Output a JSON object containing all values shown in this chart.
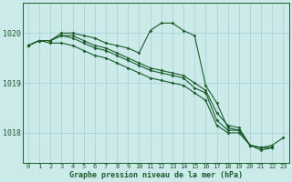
{
  "background_color": "#cceaea",
  "grid_color": "#aad4d4",
  "line_color": "#1a5c2a",
  "xlabel": "Graphe pression niveau de la mer (hPa)",
  "xlim": [
    -0.5,
    23.5
  ],
  "ylim": [
    1017.4,
    1020.6
  ],
  "yticks": [
    1018,
    1019,
    1020
  ],
  "xticks": [
    0,
    1,
    2,
    3,
    4,
    5,
    6,
    7,
    8,
    9,
    10,
    11,
    12,
    13,
    14,
    15,
    16,
    17,
    18,
    19,
    20,
    21,
    22,
    23
  ],
  "series": [
    {
      "x": [
        0,
        1,
        2,
        3,
        4,
        5,
        6,
        7,
        8,
        9,
        10,
        11,
        12,
        13,
        14,
        15,
        16,
        17,
        18,
        19,
        20,
        21,
        22,
        23
      ],
      "y": [
        1019.75,
        1019.85,
        1019.85,
        1020.0,
        1020.0,
        1019.95,
        1019.9,
        1019.8,
        1019.75,
        1019.7,
        1019.6,
        1020.05,
        1020.2,
        1020.2,
        1020.05,
        1019.95,
        1018.95,
        1018.6,
        1018.1,
        1018.05,
        1017.75,
        1017.7,
        1017.75,
        1017.9
      ]
    },
    {
      "x": [
        0,
        1,
        2,
        3,
        4,
        5,
        6,
        7,
        8,
        9,
        10,
        11,
        12,
        13,
        14,
        15,
        16,
        17,
        18,
        19,
        20,
        21,
        22
      ],
      "y": [
        1019.75,
        1019.85,
        1019.85,
        1019.95,
        1019.95,
        1019.85,
        1019.75,
        1019.7,
        1019.6,
        1019.5,
        1019.4,
        1019.3,
        1019.25,
        1019.2,
        1019.15,
        1019.0,
        1018.85,
        1018.4,
        1018.15,
        1018.1,
        1017.75,
        1017.7,
        1017.7
      ]
    },
    {
      "x": [
        0,
        1,
        2,
        3,
        4,
        5,
        6,
        7,
        8,
        9,
        10,
        11,
        12,
        13,
        14,
        15,
        16,
        17,
        18,
        19,
        20,
        21,
        22
      ],
      "y": [
        1019.75,
        1019.85,
        1019.85,
        1019.95,
        1019.9,
        1019.8,
        1019.7,
        1019.65,
        1019.55,
        1019.45,
        1019.35,
        1019.25,
        1019.2,
        1019.15,
        1019.1,
        1018.9,
        1018.8,
        1018.25,
        1018.05,
        1018.05,
        1017.75,
        1017.7,
        1017.7
      ]
    },
    {
      "x": [
        0,
        1,
        2,
        3,
        4,
        5,
        6,
        7,
        8,
        9,
        10,
        11,
        12,
        13,
        14,
        15,
        16,
        17,
        18,
        19,
        20,
        21,
        22
      ],
      "y": [
        1019.75,
        1019.85,
        1019.8,
        1019.8,
        1019.75,
        1019.65,
        1019.55,
        1019.5,
        1019.4,
        1019.3,
        1019.2,
        1019.1,
        1019.05,
        1019.0,
        1018.95,
        1018.8,
        1018.65,
        1018.15,
        1018.0,
        1018.0,
        1017.75,
        1017.65,
        1017.7
      ]
    }
  ]
}
